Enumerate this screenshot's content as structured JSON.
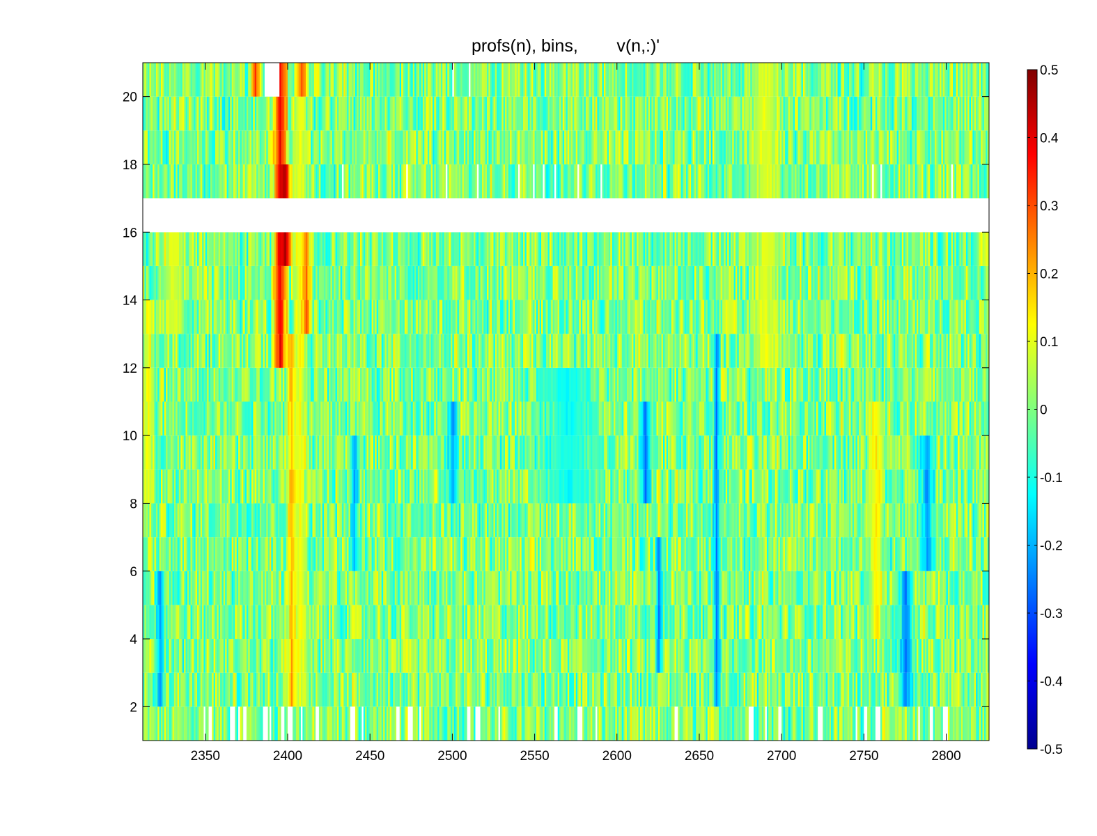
{
  "chart_data": {
    "type": "heatmap",
    "title": "profs(n), bins,        v(n,:)'",
    "xlabel": "",
    "ylabel": "",
    "xlim": [
      2312,
      2826
    ],
    "ylim": [
      1,
      21
    ],
    "x_ticks": [
      2350,
      2400,
      2450,
      2500,
      2550,
      2600,
      2650,
      2700,
      2750,
      2800
    ],
    "x_tick_labels": [
      "2350",
      "2400",
      "2450",
      "2500",
      "2550",
      "2600",
      "2650",
      "2700",
      "2750",
      "2800"
    ],
    "y_ticks": [
      2,
      4,
      6,
      8,
      10,
      12,
      14,
      16,
      18,
      20
    ],
    "y_tick_labels": [
      "2",
      "4",
      "6",
      "8",
      "10",
      "12",
      "14",
      "16",
      "18",
      "20"
    ],
    "colorbar": {
      "colormap": "jet",
      "clim": [
        -0.5,
        0.5
      ],
      "ticks": [
        0.5,
        0.4,
        0.3,
        0.2,
        0.1,
        0,
        -0.1,
        -0.2,
        -0.3,
        -0.4,
        -0.5
      ],
      "tick_labels": [
        "0.5",
        "0.4",
        "0.3",
        "0.2",
        "0.1",
        "0",
        "-0.1",
        "-0.2",
        "-0.3",
        "-0.4",
        "-0.5"
      ]
    },
    "rows": [
      1,
      2,
      3,
      4,
      5,
      6,
      7,
      8,
      9,
      10,
      11,
      12,
      13,
      14,
      15,
      17,
      18,
      19,
      20
    ],
    "missing_rows": [
      16
    ],
    "bin_range": [
      2312,
      2826
    ],
    "features": [
      {
        "x_center": 2395,
        "half_width": 5,
        "rows": [
          12,
          20
        ],
        "value": 0.4
      },
      {
        "x_center": 2398,
        "half_width": 4,
        "rows": [
          15,
          17
        ],
        "value": 0.45
      },
      {
        "x_center": 2402,
        "half_width": 3,
        "rows": [
          2,
          12
        ],
        "value": 0.22
      },
      {
        "x_center": 2407,
        "half_width": 5,
        "rows": [
          2,
          20
        ],
        "value": 0.12
      },
      {
        "x_center": 2380,
        "half_width": 3,
        "rows": [
          20,
          21
        ],
        "value": 0.35
      },
      {
        "x_center": 2408,
        "half_width": 3,
        "rows": [
          20,
          21
        ],
        "value": 0.3
      },
      {
        "x_center": 2411,
        "half_width": 3,
        "rows": [
          13,
          15
        ],
        "value": 0.28
      },
      {
        "x_center": 2690,
        "half_width": 12,
        "rows": [
          12,
          20
        ],
        "value": 0.1
      },
      {
        "x_center": 2757,
        "half_width": 5,
        "rows": [
          4,
          10
        ],
        "value": 0.15
      },
      {
        "x_center": 2775,
        "half_width": 5,
        "rows": [
          2,
          5
        ],
        "value": -0.25
      },
      {
        "x_center": 2788,
        "half_width": 6,
        "rows": [
          6,
          9
        ],
        "value": -0.22
      },
      {
        "x_center": 2660,
        "half_width": 2,
        "rows": [
          2,
          12
        ],
        "value": -0.25
      },
      {
        "x_center": 2617,
        "half_width": 4,
        "rows": [
          8,
          10
        ],
        "value": -0.27
      },
      {
        "x_center": 2625,
        "half_width": 2,
        "rows": [
          3,
          6
        ],
        "value": -0.25
      },
      {
        "x_center": 2500,
        "half_width": 4,
        "rows": [
          8,
          10
        ],
        "value": -0.22
      },
      {
        "x_center": 2440,
        "half_width": 3,
        "rows": [
          6,
          9
        ],
        "value": -0.2
      },
      {
        "x_center": 2322,
        "half_width": 3,
        "rows": [
          2,
          5
        ],
        "value": -0.22
      },
      {
        "x_center": 2570,
        "half_width": 25,
        "rows": [
          8,
          11
        ],
        "value": -0.12
      },
      {
        "x_center": 2330,
        "half_width": 10,
        "rows": [
          13,
          16
        ],
        "value": 0.1
      },
      {
        "x_center": 2315,
        "half_width": 4,
        "rows": [
          8,
          13
        ],
        "value": 0.12
      }
    ]
  }
}
